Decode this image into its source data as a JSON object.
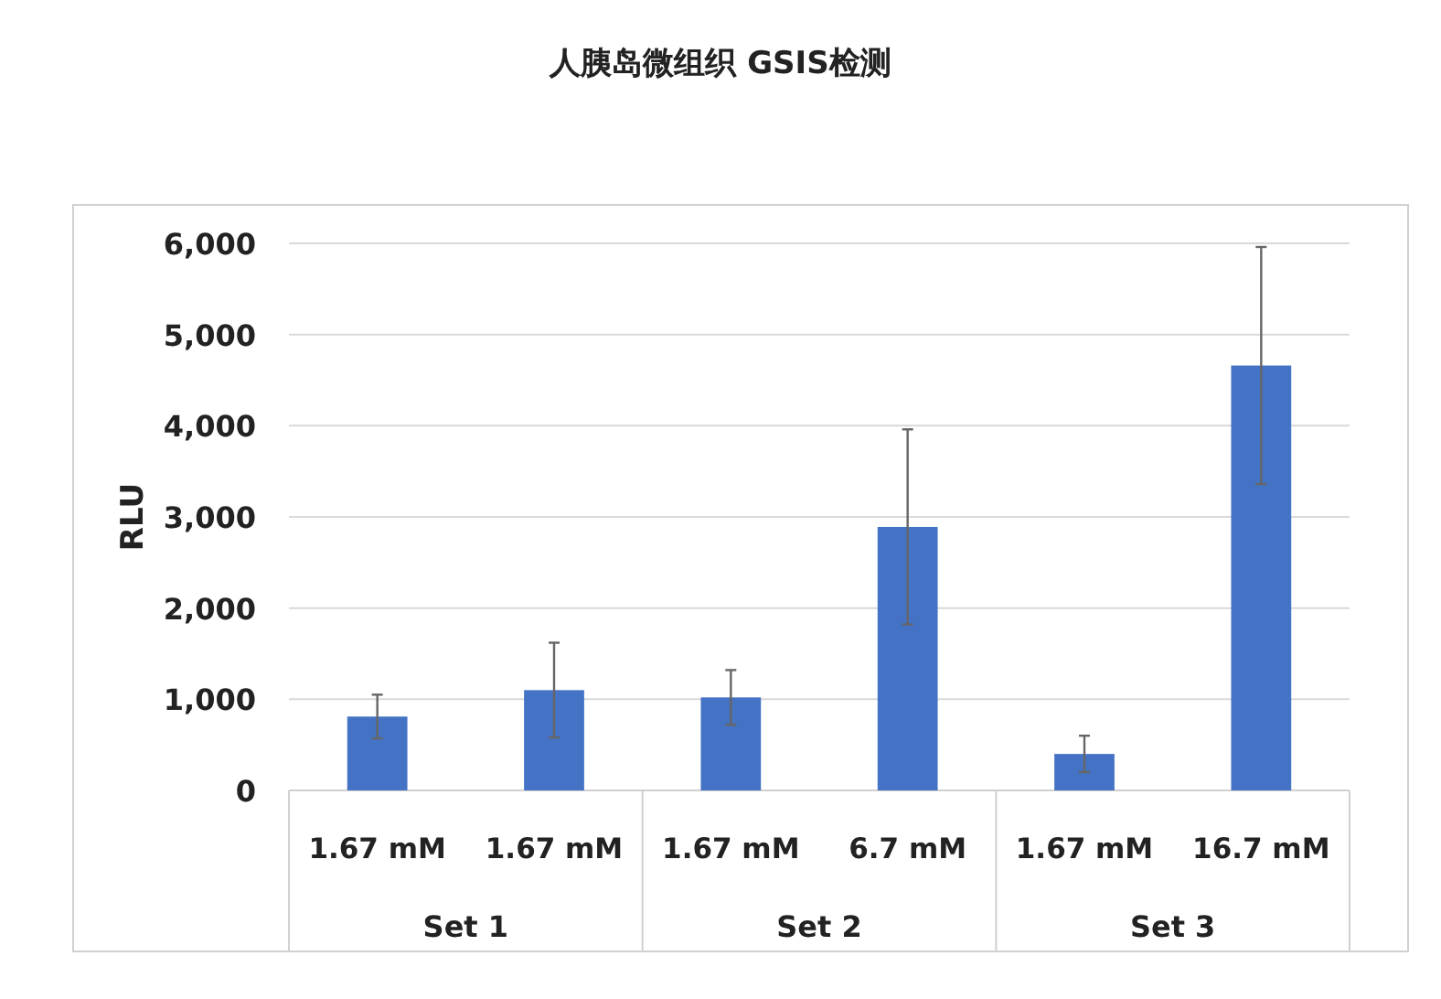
{
  "chart_data": {
    "type": "bar",
    "title": "人胰岛微组织 GSIS检测",
    "ylabel": "RLU",
    "categories": [
      "1.67 mM",
      "1.67 mM",
      "1.67 mM",
      "6.7 mM",
      "1.67 mM",
      "16.7 mM"
    ],
    "values": [
      810,
      1100,
      1020,
      2890,
      400,
      4660
    ],
    "errors": [
      240,
      520,
      300,
      1070,
      200,
      1300
    ],
    "color": "#4472c4",
    "annotations": [
      "Set 1",
      "Set 2",
      "Set 3"
    ],
    "ylim": [
      0,
      6000
    ],
    "yticks": [
      {
        "value": 0,
        "label": "0"
      },
      {
        "value": 1000,
        "label": "1,000"
      },
      {
        "value": 2000,
        "label": "2,000"
      },
      {
        "value": 3000,
        "label": "3,000"
      },
      {
        "value": 4000,
        "label": "4,000"
      },
      {
        "value": 5000,
        "label": "5,000"
      },
      {
        "value": 6000,
        "label": "6,000"
      }
    ],
    "grid": "y"
  }
}
